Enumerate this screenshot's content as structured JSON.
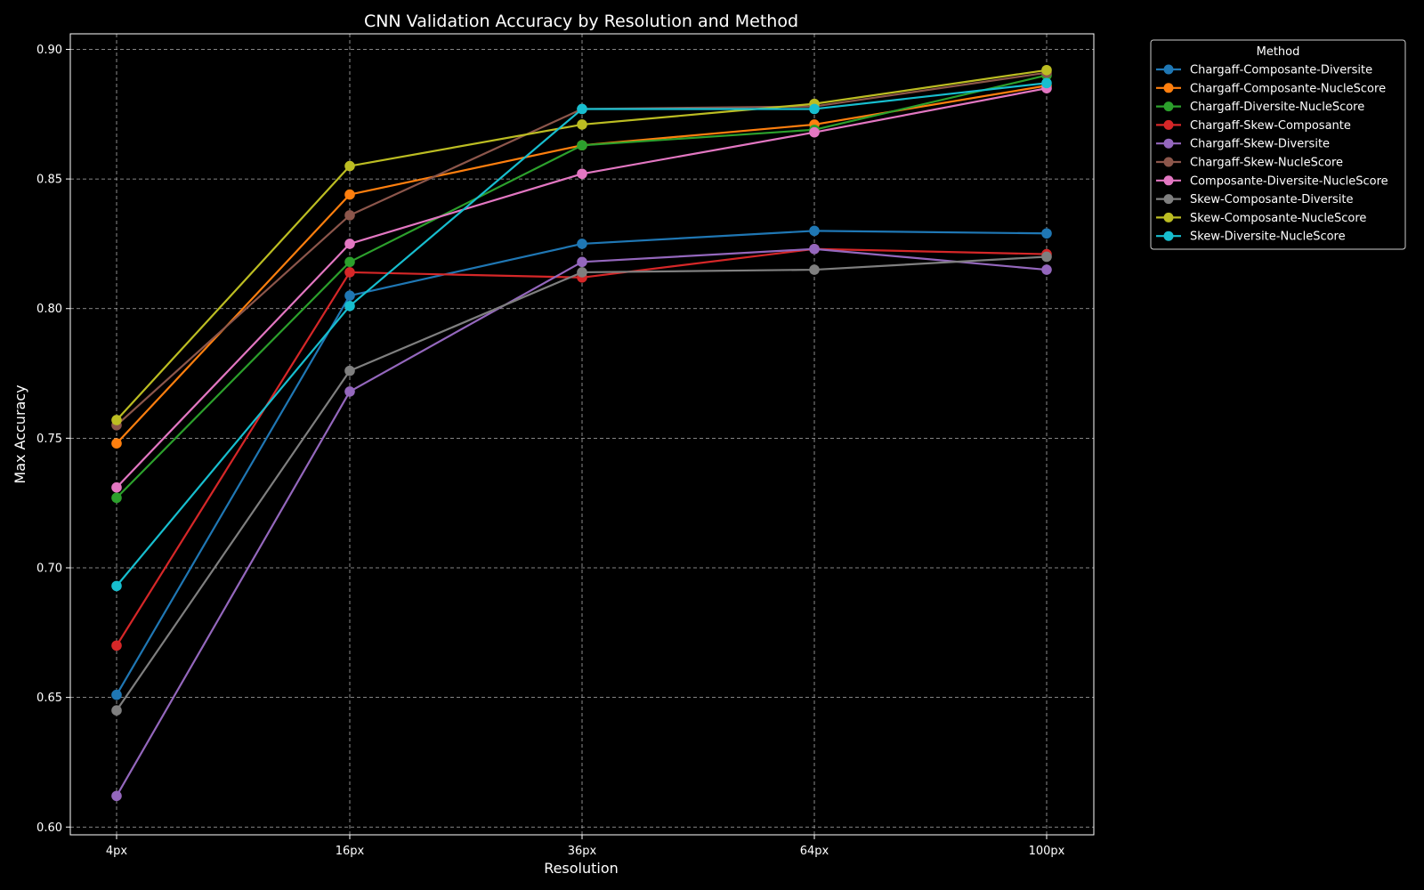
{
  "chart_data": {
    "type": "line",
    "title": "CNN Validation Accuracy by Resolution and Method",
    "xlabel": "Resolution",
    "ylabel": "Max Accuracy",
    "categories": [
      "4px",
      "16px",
      "36px",
      "64px",
      "100px"
    ],
    "ylim": [
      0.597,
      0.906
    ],
    "yticks": [
      "0.60",
      "0.65",
      "0.70",
      "0.75",
      "0.80",
      "0.85",
      "0.90"
    ],
    "grid": true,
    "legend": {
      "title": "Method",
      "placement": "outside-top-right"
    },
    "series": [
      {
        "name": "Chargaff-Composante-Diversite",
        "color": "#1f77b4",
        "values": [
          0.651,
          0.805,
          0.825,
          0.83,
          0.829
        ]
      },
      {
        "name": "Chargaff-Composante-NucleScore",
        "color": "#ff7f0e",
        "values": [
          0.748,
          0.844,
          0.863,
          0.871,
          0.886
        ]
      },
      {
        "name": "Chargaff-Diversite-NucleScore",
        "color": "#2ca02c",
        "values": [
          0.727,
          0.818,
          0.863,
          0.869,
          0.89
        ]
      },
      {
        "name": "Chargaff-Skew-Composante",
        "color": "#d62728",
        "values": [
          0.67,
          0.814,
          0.812,
          0.823,
          0.821
        ]
      },
      {
        "name": "Chargaff-Skew-Diversite",
        "color": "#9467bd",
        "values": [
          0.612,
          0.768,
          0.818,
          0.823,
          0.815
        ]
      },
      {
        "name": "Chargaff-Skew-NucleScore",
        "color": "#8c564b",
        "values": [
          0.755,
          0.836,
          0.877,
          0.878,
          0.891
        ]
      },
      {
        "name": "Composante-Diversite-NucleScore",
        "color": "#e377c2",
        "values": [
          0.731,
          0.825,
          0.852,
          0.868,
          0.885
        ]
      },
      {
        "name": "Skew-Composante-Diversite",
        "color": "#7f7f7f",
        "values": [
          0.645,
          0.776,
          0.814,
          0.815,
          0.82
        ]
      },
      {
        "name": "Skew-Composante-NucleScore",
        "color": "#bcbd22",
        "values": [
          0.757,
          0.855,
          0.871,
          0.879,
          0.892
        ]
      },
      {
        "name": "Skew-Diversite-NucleScore",
        "color": "#17becf",
        "values": [
          0.693,
          0.801,
          0.877,
          0.877,
          0.887
        ]
      }
    ]
  }
}
